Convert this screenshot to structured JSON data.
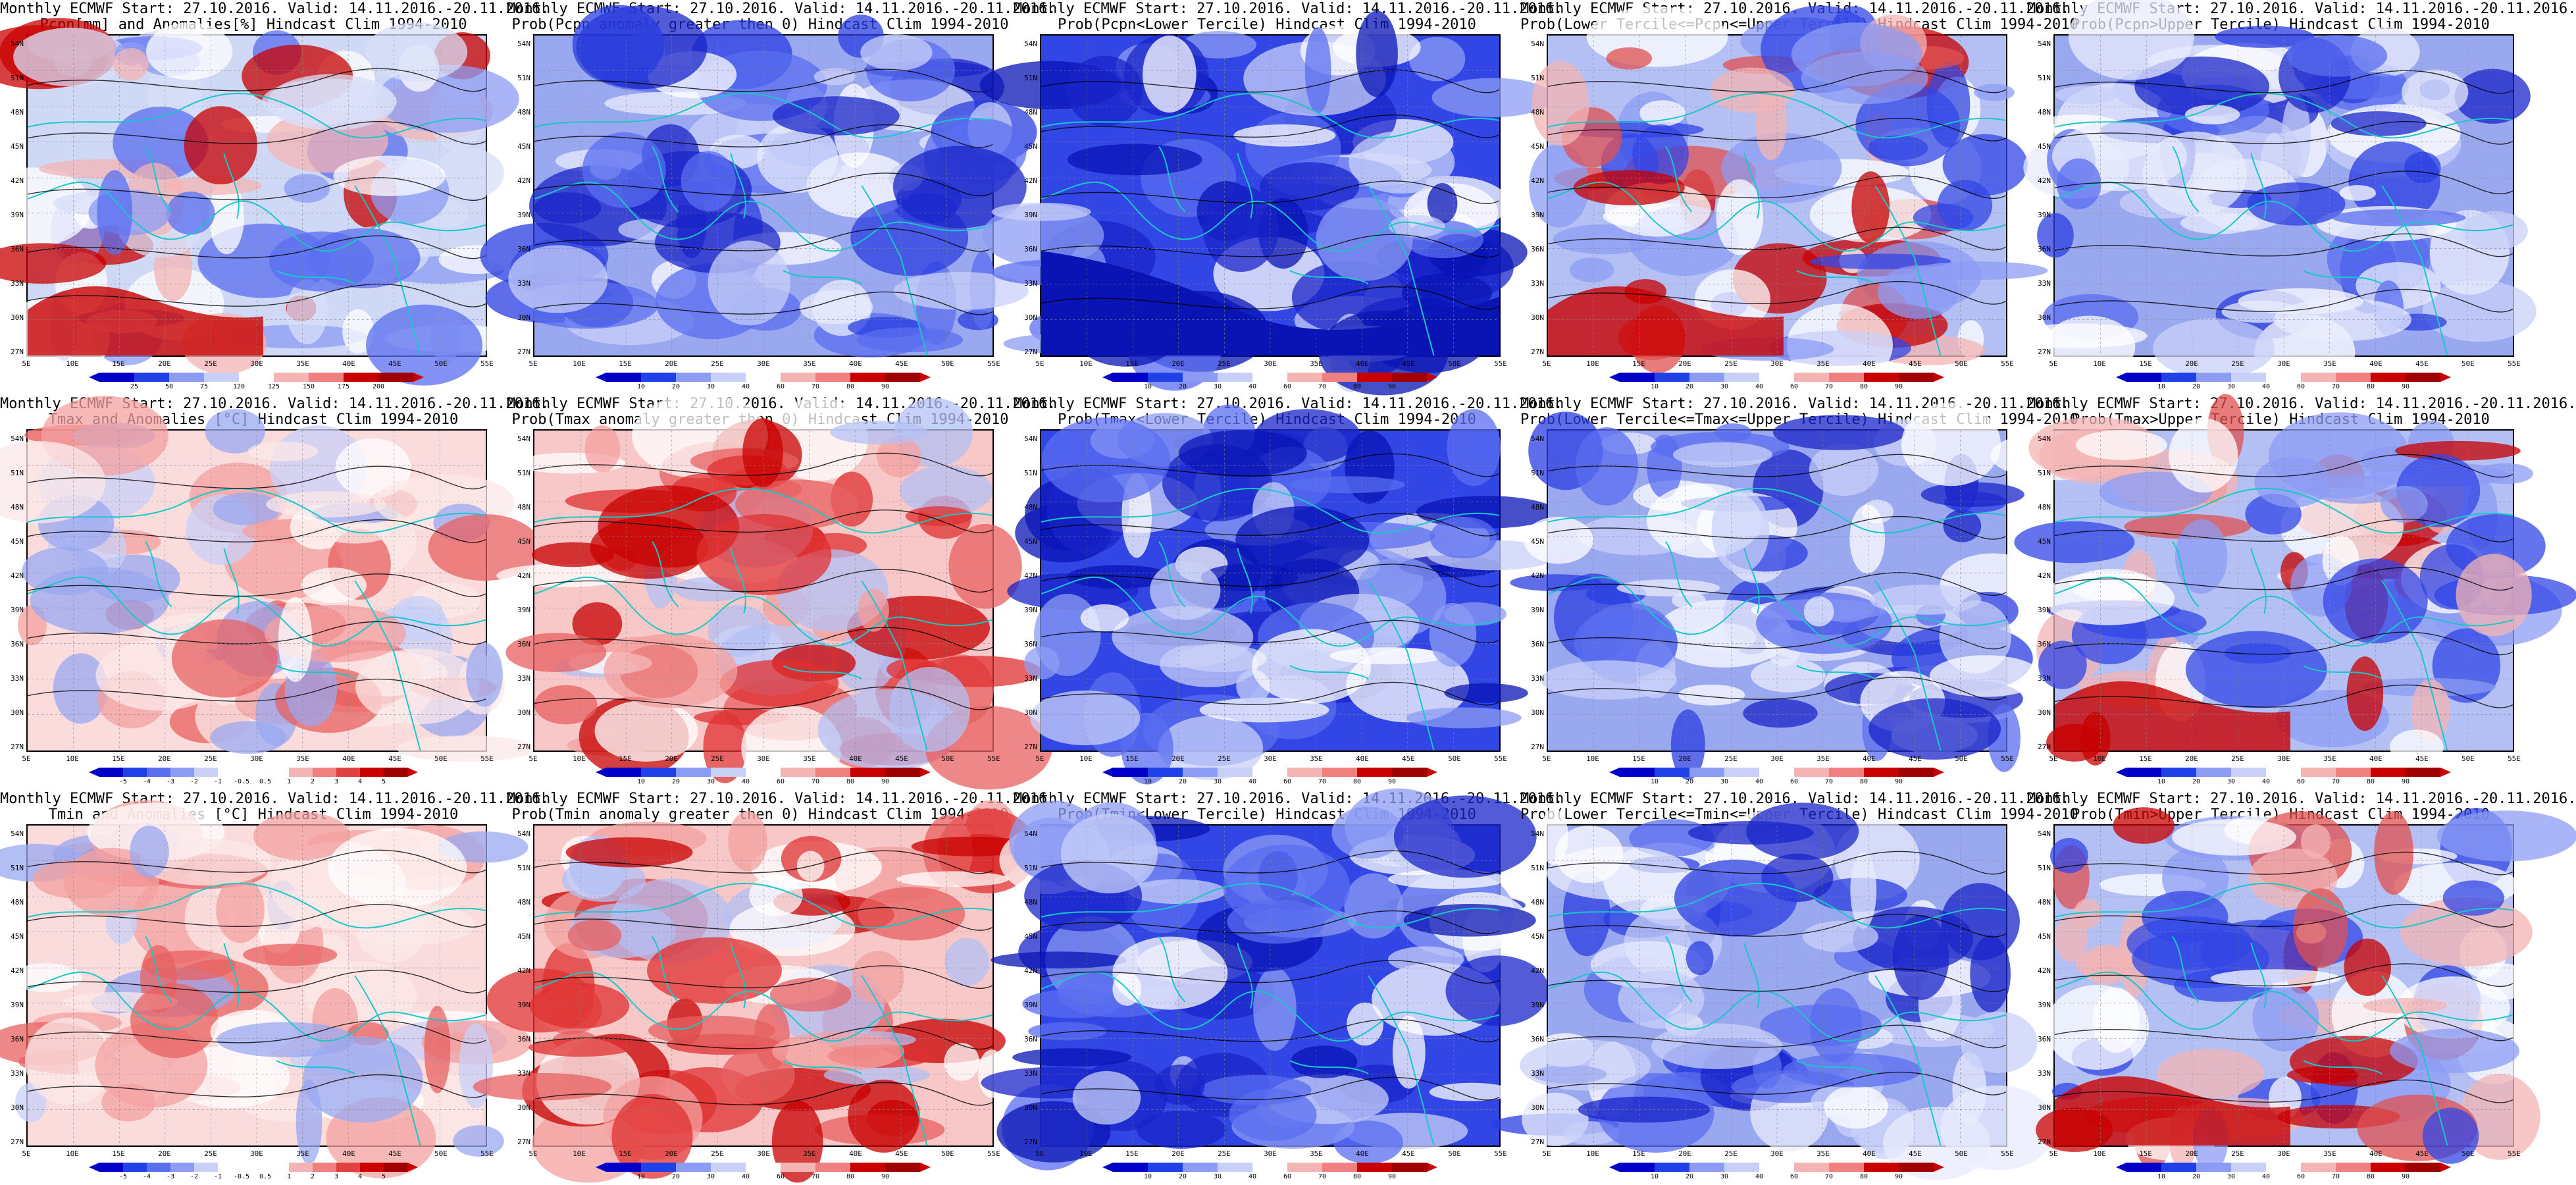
{
  "colors": {
    "coast": "#18c8c8",
    "contour": "#000000",
    "ocean_deep_blue": "#0a14b4"
  },
  "lat_labels": [
    "54N",
    "51N",
    "48N",
    "45N",
    "42N",
    "39N",
    "36N",
    "33N",
    "30N",
    "27N"
  ],
  "lon_labels": [
    "5E",
    "10E",
    "15E",
    "20E",
    "25E",
    "30E",
    "35E",
    "40E",
    "45E",
    "50E",
    "55E"
  ],
  "panels": [
    {
      "title1": "Monthly ECMWF Start: 27.10.2016. Valid: 14.11.2016.-20.11.2016.",
      "title2": "Pcpn[mm] and Anomalies[%] Hindcast Clim 1994-2010",
      "palette": "precip",
      "ticks": [
        "25",
        "50",
        "75",
        "120",
        "125",
        "150",
        "175",
        "200"
      ]
    },
    {
      "title1": "Monthly ECMWF Start: 27.10.2016. Valid: 14.11.2016.-20.11.2016.",
      "title2": "Prob(Pcpn anomaly greater then 0) Hindcast Clim 1994-2010",
      "palette": "prob_blue",
      "ticks": [
        "10",
        "20",
        "30",
        "40",
        "60",
        "70",
        "80",
        "90"
      ]
    },
    {
      "title1": "Monthly ECMWF Start: 27.10.2016. Valid: 14.11.2016.-20.11.2016.",
      "title2": "Prob(Pcpn<Lower Tercile) Hindcast Clim 1994-2010",
      "palette": "prob_deep",
      "ticks": [
        "10",
        "20",
        "30",
        "40",
        "60",
        "70",
        "80",
        "90"
      ]
    },
    {
      "title1": "Monthly ECMWF Start: 27.10.2016. Valid: 14.11.2016.-20.11.2016.",
      "title2": "Prob(Lower Tercile<=Pcpn<=Upper Tercile) Hindcast Clim 1994-2010",
      "palette": "prob_mixed",
      "ticks": [
        "10",
        "20",
        "30",
        "40",
        "60",
        "70",
        "80",
        "90"
      ]
    },
    {
      "title1": "Monthly ECMWF Start: 27.10.2016. Valid: 14.11.2016.-20.11.2016.",
      "title2": "Prob(Pcpn>Upper Tercile) Hindcast Clim 1994-2010",
      "palette": "prob_blue",
      "ticks": [
        "10",
        "20",
        "30",
        "40",
        "60",
        "70",
        "80",
        "90"
      ]
    },
    {
      "title1": "Monthly ECMWF Start: 27.10.2016. Valid: 14.11.2016.-20.11.2016.",
      "title2": "Tmax and Anomalies [°C] Hindcast Clim 1994-2010",
      "palette": "temp_warm",
      "ticks": [
        "-5",
        "-4",
        "-3",
        "-2",
        "-1",
        "-0.5",
        "0.5",
        "1",
        "2",
        "3",
        "4",
        "5"
      ]
    },
    {
      "title1": "Monthly ECMWF Start: 27.10.2016. Valid: 14.11.2016.-20.11.2016.",
      "title2": "Prob(Tmax anomaly greater then 0) Hindcast Clim 1994-2010",
      "palette": "prob_red",
      "ticks": [
        "10",
        "20",
        "30",
        "40",
        "60",
        "70",
        "80",
        "90"
      ]
    },
    {
      "title1": "Monthly ECMWF Start: 27.10.2016. Valid: 14.11.2016.-20.11.2016.",
      "title2": "Prob(Tmax<Lower Tercile) Hindcast Clim 1994-2010",
      "palette": "prob_deep",
      "ticks": [
        "10",
        "20",
        "30",
        "40",
        "60",
        "70",
        "80",
        "90"
      ]
    },
    {
      "title1": "Monthly ECMWF Start: 27.10.2016. Valid: 14.11.2016.-20.11.2016.",
      "title2": "Prob(Lower Tercile<=Tmax<=Upper Tercile) Hindcast Clim 1994-2010",
      "palette": "prob_blue",
      "ticks": [
        "10",
        "20",
        "30",
        "40",
        "60",
        "70",
        "80",
        "90"
      ]
    },
    {
      "title1": "Monthly ECMWF Start: 27.10.2016. Valid: 14.11.2016.-20.11.2016.",
      "title2": "Prob(Tmax>Upper Tercile) Hindcast Clim 1994-2010",
      "palette": "prob_mixed",
      "ticks": [
        "10",
        "20",
        "30",
        "40",
        "60",
        "70",
        "80",
        "90"
      ]
    },
    {
      "title1": "Monthly ECMWF Start: 27.10.2016. Valid: 14.11.2016.-20.11.2016.",
      "title2": "Tmin and Anomalies [°C] Hindcast Clim 1994-2010",
      "palette": "temp_warm",
      "ticks": [
        "-5",
        "-4",
        "-3",
        "-2",
        "-1",
        "-0.5",
        "0.5",
        "1",
        "2",
        "3",
        "4",
        "5"
      ]
    },
    {
      "title1": "Monthly ECMWF Start: 27.10.2016. Valid: 14.11.2016.-20.11.2016.",
      "title2": "Prob(Tmin anomaly greater then 0) Hindcast Clim 1994-2010",
      "palette": "prob_red",
      "ticks": [
        "10",
        "20",
        "30",
        "40",
        "60",
        "70",
        "80",
        "90"
      ]
    },
    {
      "title1": "Monthly ECMWF Start: 27.10.2016. Valid: 14.11.2016.-20.11.2016.",
      "title2": "Prob(Tmin<Lower Tercile) Hindcast Clim 1994-2010",
      "palette": "prob_deep",
      "ticks": [
        "10",
        "20",
        "30",
        "40",
        "60",
        "70",
        "80",
        "90"
      ]
    },
    {
      "title1": "Monthly ECMWF Start: 27.10.2016. Valid: 14.11.2016.-20.11.2016.",
      "title2": "Prob(Lower Tercile<=Tmin<=Upper Tercile) Hindcast Clim 1994-2010",
      "palette": "prob_blue",
      "ticks": [
        "10",
        "20",
        "30",
        "40",
        "60",
        "70",
        "80",
        "90"
      ]
    },
    {
      "title1": "Monthly ECMWF Start: 27.10.2016. Valid: 14.11.2016.-20.11.2016.",
      "title2": "Prob(Tmin>Upper Tercile) Hindcast Clim 1994-2010",
      "palette": "prob_mixed",
      "ticks": [
        "10",
        "20",
        "30",
        "40",
        "60",
        "70",
        "80",
        "90"
      ]
    }
  ]
}
